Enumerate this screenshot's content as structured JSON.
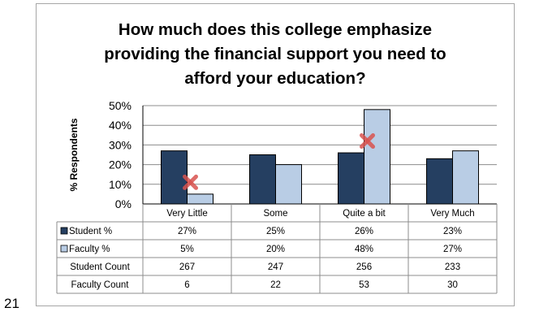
{
  "slide_number": "21",
  "colors": {
    "student": "#253f61",
    "faculty": "#b9cde5",
    "marker": "#d9534f"
  },
  "chart_data": {
    "type": "bar",
    "title": "How much does this college emphasize providing the financial support you need to afford your education?",
    "title_lines": [
      "How much does this college emphasize",
      "providing the financial support you need to",
      "afford your education?"
    ],
    "ylabel": "% Respondents",
    "ylim": [
      0,
      50
    ],
    "yticks": [
      "50%",
      "40%",
      "30%",
      "20%",
      "10%",
      "0%"
    ],
    "categories": [
      "Very Little",
      "Some",
      "Quite a bit",
      "Very Much"
    ],
    "series": [
      {
        "name": "Student %",
        "values": [
          27,
          25,
          26,
          23
        ]
      },
      {
        "name": "Faculty %",
        "values": [
          5,
          20,
          48,
          27
        ]
      }
    ],
    "grid": true,
    "markers": [
      {
        "category": "Very Little",
        "value": 11,
        "symbol": "x"
      },
      {
        "category": "Quite a bit",
        "value": 32,
        "symbol": "x"
      }
    ],
    "table": {
      "rows": [
        {
          "label": "Student %",
          "legend_key": "student",
          "values": [
            "27%",
            "25%",
            "26%",
            "23%"
          ]
        },
        {
          "label": "Faculty %",
          "legend_key": "faculty",
          "values": [
            "5%",
            "20%",
            "48%",
            "27%"
          ]
        },
        {
          "label": "Student Count",
          "legend_key": "",
          "values": [
            "267",
            "247",
            "256",
            "233"
          ]
        },
        {
          "label": "Faculty Count",
          "legend_key": "",
          "values": [
            "6",
            "22",
            "53",
            "30"
          ]
        }
      ]
    }
  }
}
